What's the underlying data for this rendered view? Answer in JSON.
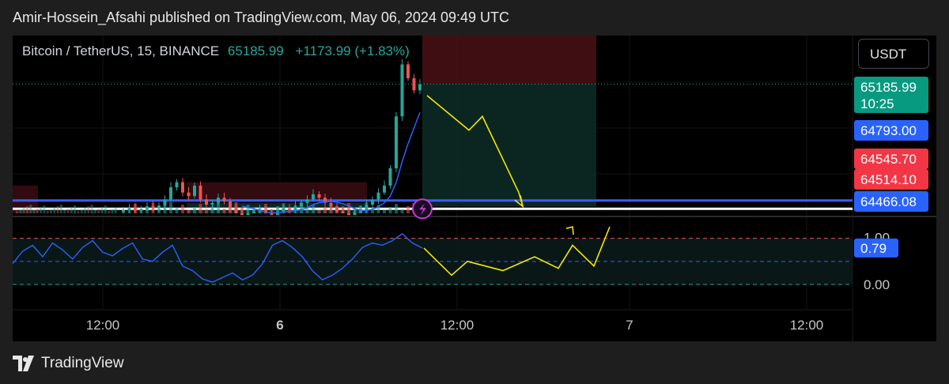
{
  "header": {
    "publisher_line": "Amir-Hossein_Afsahi published on TradingView.com, May 06, 2024 09:49 UTC"
  },
  "symbol": {
    "name": "Bitcoin / TetherUS, 15, BINANCE",
    "price": "65185.99",
    "change": "+1173.99 (+1.83%)"
  },
  "currency_button": {
    "label": "USDT"
  },
  "footer": {
    "brand": "TradingView"
  },
  "colors": {
    "up": "#26a69a",
    "down": "#ef5350",
    "rsi": "#2962ff",
    "forecast": "#f2e600",
    "price_line": "#3d5afe",
    "level_line": "#ffffff"
  },
  "chart_data": [
    {
      "type": "candlestick",
      "axis_labels": {
        "x": [
          "12:00",
          "6",
          "12:00",
          "7",
          "12:00"
        ],
        "y": [
          "65185.99",
          "10:25",
          "64793.00",
          "64545.70",
          "64514.10",
          "64466.08"
        ]
      },
      "price_labels": [
        {
          "value": "65185.99",
          "sub": "10:25",
          "color": "#089981"
        },
        {
          "value": "64793.00",
          "color": "#2962ff"
        },
        {
          "value": "64545.70",
          "color": "#f23645"
        },
        {
          "value": "64514.10",
          "color": "#f23645"
        },
        {
          "value": "64466.08",
          "color": "#2962ff"
        }
      ],
      "levels": {
        "last_price": 65185.99,
        "blue_line": 64514.1,
        "white_line": 64466.08
      },
      "current_price": 65185.99,
      "position_tool": {
        "entry": 65185.99,
        "stop": 65480,
        "target": 64480,
        "side": "short"
      },
      "forecast_path": [
        65120,
        64920,
        64780,
        64620,
        64480
      ],
      "closes": [
        64460,
        64470,
        64455,
        64465,
        64480,
        64470,
        64485,
        64520,
        64590,
        64620,
        64560,
        64540,
        64600,
        64520,
        64490,
        64500,
        64530,
        64510,
        64470,
        64440,
        64430,
        64440,
        64450,
        64460,
        64440,
        64430,
        64450,
        64470,
        64460,
        64480,
        64500,
        64520,
        64550,
        64530,
        64500,
        64480,
        64450,
        64440,
        64430,
        64445,
        64460,
        64490,
        64520,
        64560,
        64600,
        64700,
        65000,
        65300,
        65220,
        65150,
        65185
      ]
    },
    {
      "type": "line",
      "axis_labels": {
        "y": [
          "1.00",
          "0.79",
          "0.00"
        ]
      },
      "ylim": [
        0,
        1.2
      ],
      "reference_levels": [
        1.0,
        0.5,
        0.0
      ],
      "current_value": 0.79,
      "series": [
        {
          "values": [
            0.45,
            0.72,
            0.85,
            0.6,
            0.9,
            0.75,
            0.55,
            0.8,
            0.95,
            0.7,
            0.62,
            0.78,
            0.9,
            0.55,
            0.5,
            0.7,
            0.85,
            0.4,
            0.3,
            0.12,
            0.05,
            0.15,
            0.25,
            0.1,
            0.2,
            0.45,
            0.85,
            0.95,
            0.8,
            0.6,
            0.3,
            0.1,
            0.2,
            0.35,
            0.55,
            0.8,
            0.9,
            0.85,
            0.95,
            1.1,
            0.9,
            0.79
          ]
        },
        {
          "values": [
            0.79,
            0.2,
            0.5,
            0.3,
            0.6,
            0.35,
            0.85,
            0.4,
            1.25
          ]
        }
      ]
    }
  ]
}
